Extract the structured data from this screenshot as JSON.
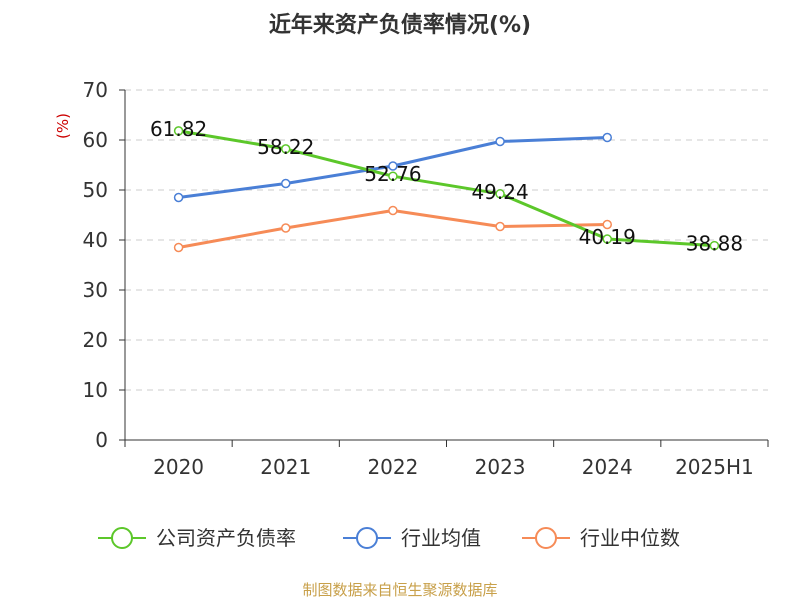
{
  "chart_data": {
    "type": "line",
    "title": "近年来资产负债率情况(%)",
    "y_unit": "(%)",
    "categories": [
      "2020",
      "2021",
      "2022",
      "2023",
      "2024",
      "2025H1"
    ],
    "ylim": [
      0,
      70
    ],
    "yticks": [
      0,
      10,
      20,
      30,
      40,
      50,
      60,
      70
    ],
    "grid": true,
    "legend_position": "bottom",
    "series": [
      {
        "name": "公司资产负债率",
        "color": "#5cc72a",
        "values": [
          61.82,
          58.22,
          52.76,
          49.24,
          40.19,
          38.88
        ],
        "labels": [
          "61.82",
          "58.22",
          "52.76",
          "49.24",
          "40.19",
          "38.88"
        ]
      },
      {
        "name": "行业均值",
        "color": "#4a7fd6",
        "values": [
          48.5,
          51.3,
          54.8,
          59.7,
          60.5,
          null
        ]
      },
      {
        "name": "行业中位数",
        "color": "#f68b57",
        "values": [
          38.5,
          42.4,
          45.9,
          42.7,
          43.1,
          null
        ]
      }
    ]
  },
  "colors": {
    "unit": "#cc0000",
    "source": "#c8a04a",
    "axis": "#333333",
    "grid": "#cccccc"
  },
  "source": "制图数据来自恒生聚源数据库"
}
